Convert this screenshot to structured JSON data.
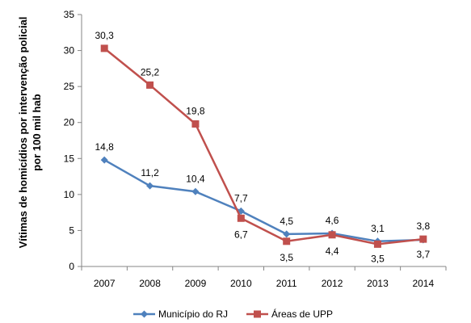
{
  "chart_data": {
    "type": "line",
    "title": "",
    "xlabel": "",
    "ylabel_lines": [
      "Vítimas de homicídios por intervenção policial",
      "por 100 mil hab"
    ],
    "categories": [
      "2007",
      "2008",
      "2009",
      "2010",
      "2011",
      "2012",
      "2013",
      "2014"
    ],
    "y_ticks": [
      "0",
      "5",
      "10",
      "15",
      "20",
      "25",
      "30",
      "35"
    ],
    "ylim": [
      0,
      35
    ],
    "grid": false,
    "legend_position": "bottom",
    "series": [
      {
        "name": "Município do RJ",
        "color": "#4F81BD",
        "marker": "diamond",
        "values": [
          14.8,
          11.2,
          10.4,
          7.7,
          4.5,
          4.6,
          3.5,
          3.7
        ],
        "labels": [
          "14,8",
          "11,2",
          "10,4",
          "7,7",
          "4,5",
          "4,6",
          "3,5",
          "3,7"
        ]
      },
      {
        "name": "Áreas de UPP",
        "color": "#C0504D",
        "marker": "square",
        "values": [
          30.3,
          25.2,
          19.8,
          6.7,
          3.5,
          4.4,
          3.1,
          3.8
        ],
        "labels": [
          "30,3",
          "25,2",
          "19,8",
          "6,7",
          "3,5",
          "4,4",
          "3,1",
          "3,8"
        ]
      }
    ]
  }
}
